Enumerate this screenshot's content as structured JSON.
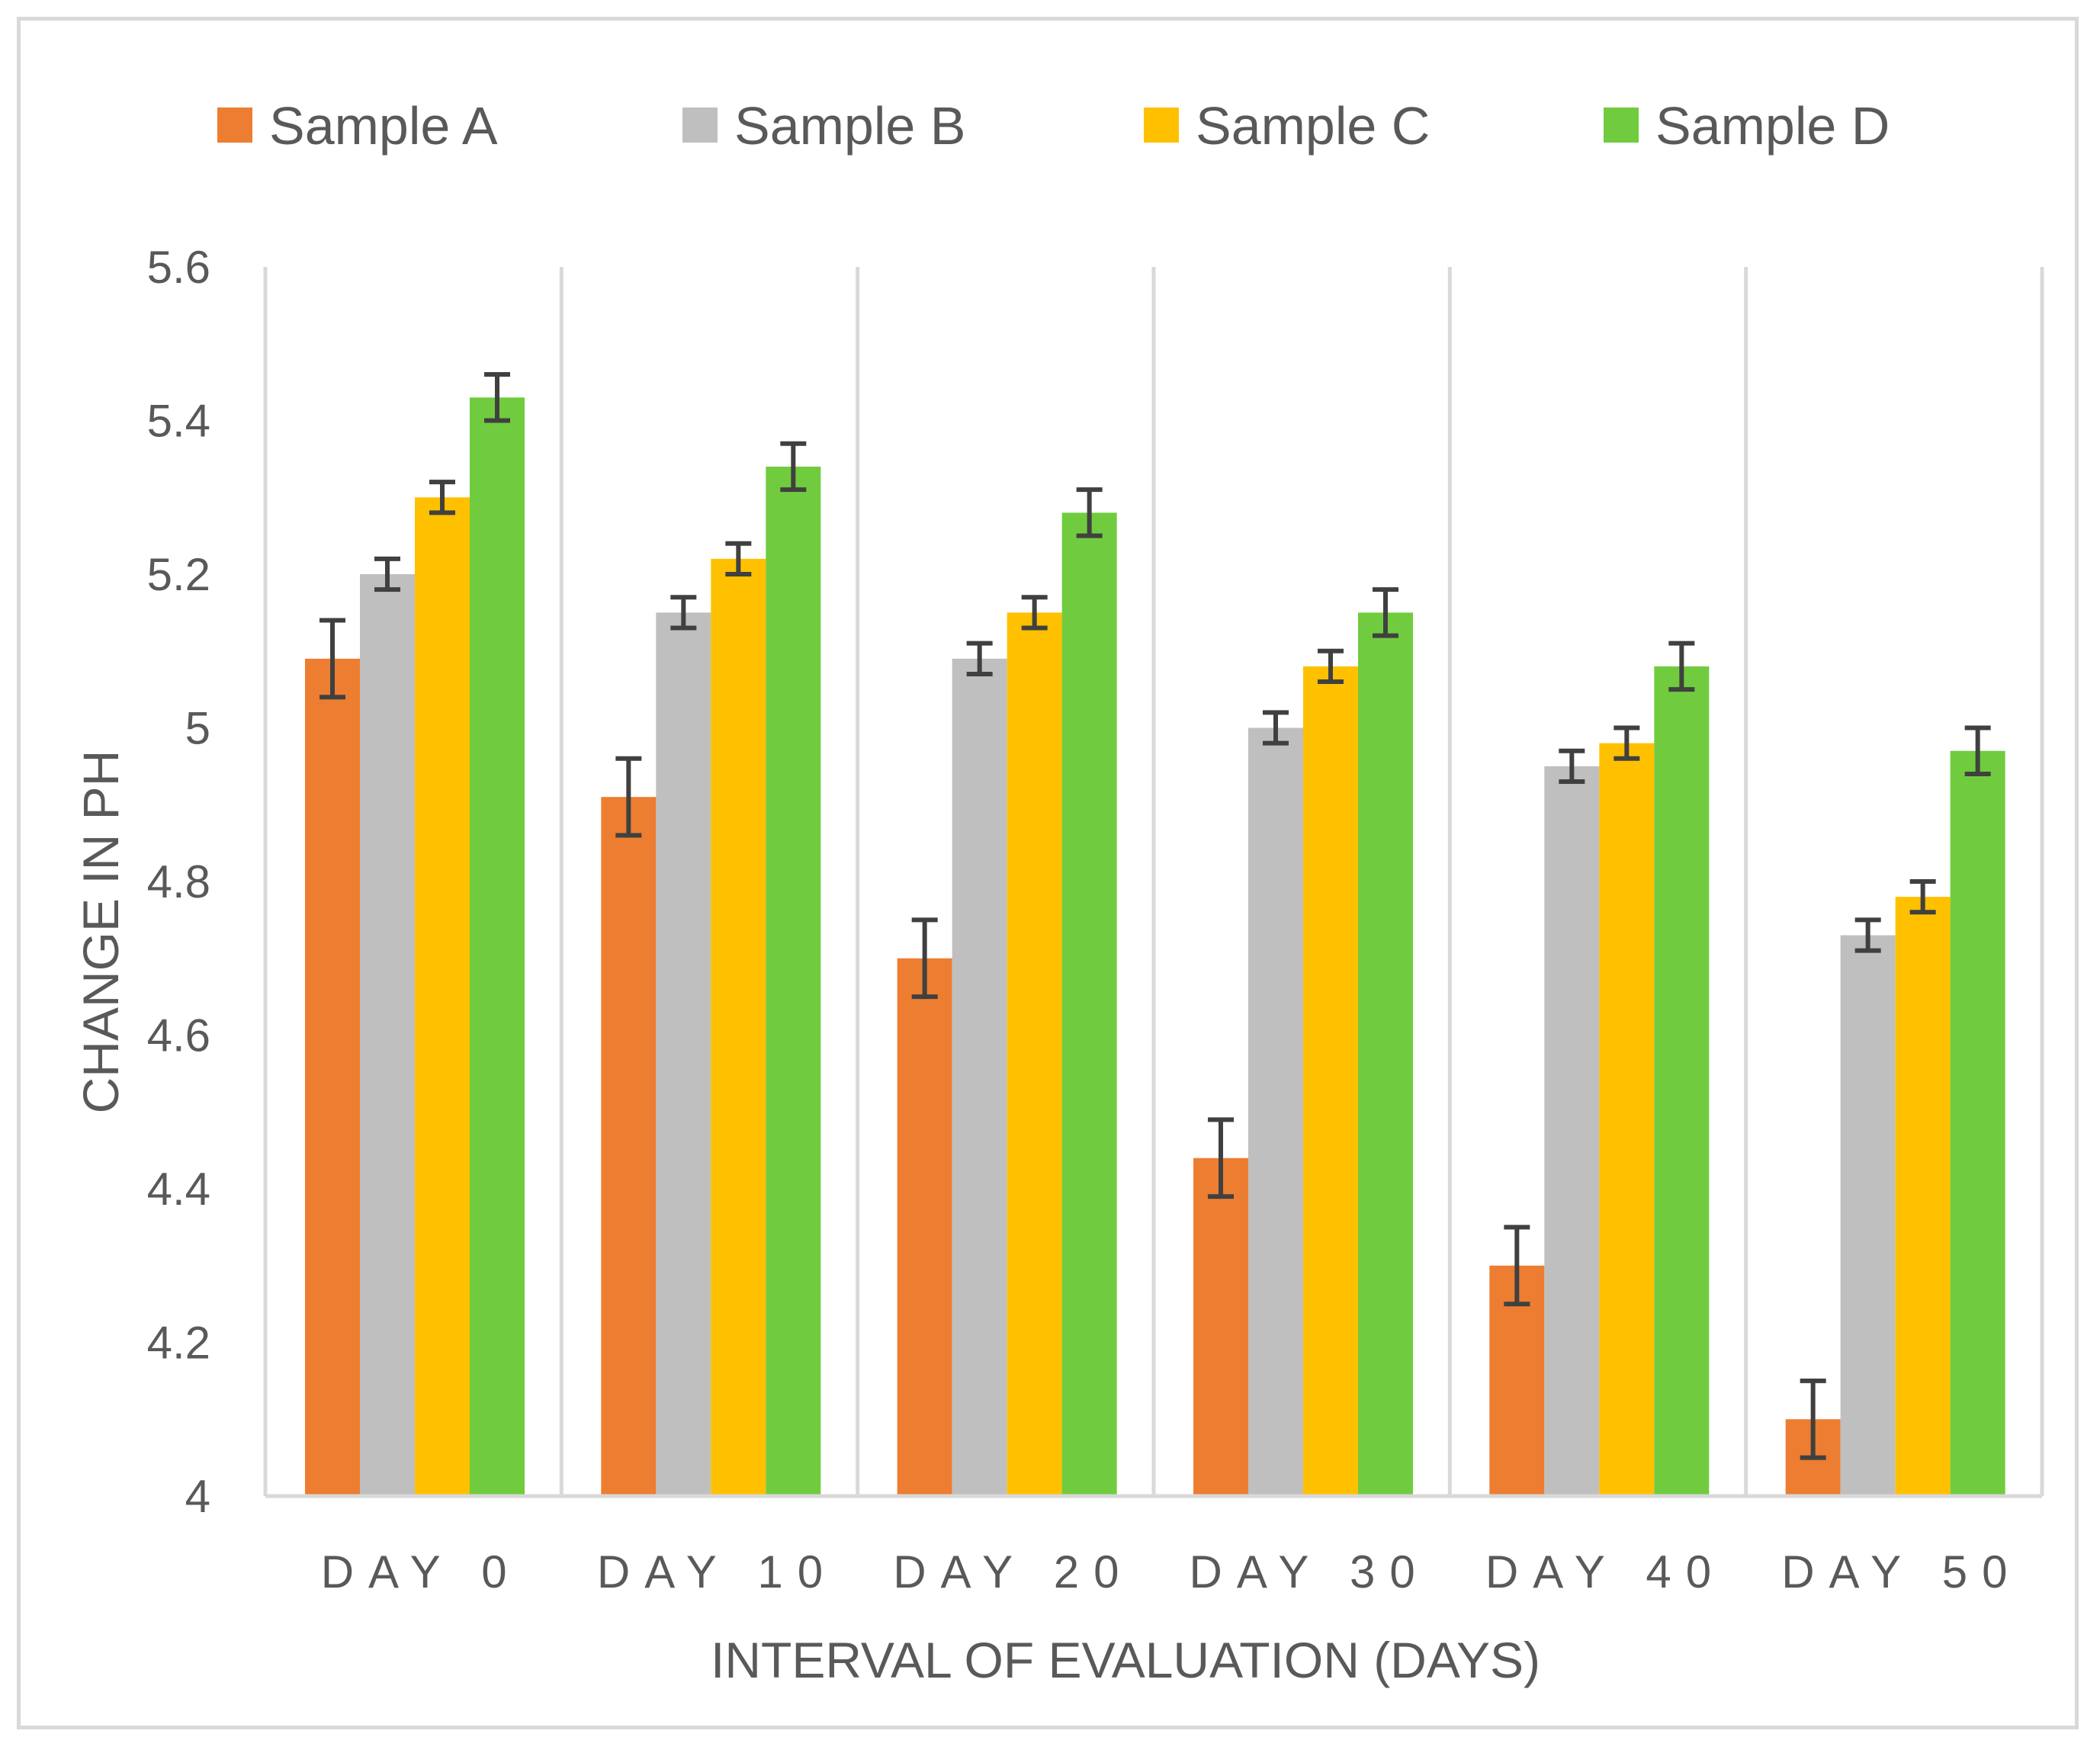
{
  "chart_data": {
    "type": "bar",
    "title": "",
    "xlabel": "INTERVAL OF EVALUATION (DAYS)",
    "ylabel": "CHANGE IN PH",
    "ylim": [
      4,
      5.6
    ],
    "yticks": [
      4,
      4.2,
      4.4,
      4.6,
      4.8,
      5,
      5.2,
      5.4,
      5.6
    ],
    "ytick_labels": [
      "4",
      "4.2",
      "4.4",
      "4.6",
      "4.8",
      "5",
      "5.2",
      "5.4",
      "5.6"
    ],
    "categories": [
      "DAY 0",
      "DAY 10",
      "DAY 20",
      "DAY 30",
      "DAY 40",
      "DAY 50"
    ],
    "grid": "vertical separators between categories",
    "legend_position": "top",
    "series": [
      {
        "name": "Sample A",
        "color": "#ED7D31",
        "values": [
          5.09,
          4.91,
          4.7,
          4.44,
          4.3,
          4.1
        ],
        "errors": [
          0.05,
          0.05,
          0.05,
          0.05,
          0.05,
          0.05
        ]
      },
      {
        "name": "Sample B",
        "color": "#BFBFBF",
        "values": [
          5.2,
          5.15,
          5.09,
          5.0,
          4.95,
          4.73
        ],
        "errors": [
          0.02,
          0.02,
          0.02,
          0.02,
          0.02,
          0.02
        ]
      },
      {
        "name": "Sample C",
        "color": "#FFC000",
        "values": [
          5.3,
          5.22,
          5.15,
          5.08,
          4.98,
          4.78
        ],
        "errors": [
          0.02,
          0.02,
          0.02,
          0.02,
          0.02,
          0.02
        ]
      },
      {
        "name": "Sample D",
        "color": "#70CC3E",
        "values": [
          5.43,
          5.34,
          5.28,
          5.15,
          5.08,
          4.97
        ],
        "errors": [
          0.03,
          0.03,
          0.03,
          0.03,
          0.03,
          0.03
        ]
      }
    ]
  }
}
